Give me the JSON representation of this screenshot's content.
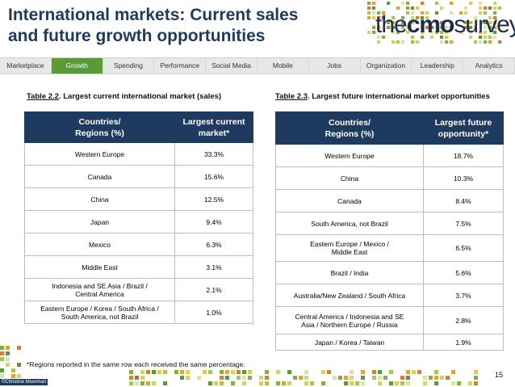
{
  "title": {
    "line1": "International markets: Current sales",
    "line2": "and future growth opportunities"
  },
  "logo": {
    "the": "the",
    "cmo": "cmo",
    "survey": "survey"
  },
  "nav": [
    {
      "label": "Marketplace",
      "active": false
    },
    {
      "label": "Growth",
      "active": true
    },
    {
      "label": "Spending",
      "active": false
    },
    {
      "label": "Performance",
      "active": false
    },
    {
      "label": "Social Media",
      "active": false
    },
    {
      "label": "Mobile",
      "active": false
    },
    {
      "label": "Jobs",
      "active": false
    },
    {
      "label": "Organization",
      "active": false
    },
    {
      "label": "Leadership",
      "active": false
    },
    {
      "label": "Analytics",
      "active": false
    }
  ],
  "colors": {
    "navy": "#1f3a5f",
    "active_tab": "#5a9a38"
  },
  "table1": {
    "caption_num": "Table 2.2",
    "caption_text": ".  Largest current international market (sales)",
    "headers": [
      "Countries/\nRegions (%)",
      "Largest current\nmarket*"
    ],
    "rows": [
      {
        "region": "Western Europe",
        "value": "33.3%"
      },
      {
        "region": "Canada",
        "value": "15.6%"
      },
      {
        "region": "China",
        "value": "12.5%"
      },
      {
        "region": "Japan",
        "value": "9.4%"
      },
      {
        "region": "Mexico",
        "value": "6.3%"
      },
      {
        "region": "Middle East",
        "value": "3.1%"
      },
      {
        "region": "Indonesia and SE Asia / Brazil /\nCentral America",
        "value": "2.1%"
      },
      {
        "region": "Eastern Europe / Korea / South Africa /\nSouth America, not Brazil",
        "value": "1.0%"
      }
    ]
  },
  "table2": {
    "caption_num": "Table 2.3",
    "caption_text": ".  Largest future international market opportunities",
    "headers": [
      "Countries/\nRegions (%)",
      "Largest future\nopportunity*"
    ],
    "rows": [
      {
        "region": "Western Europe",
        "value": "18.7%"
      },
      {
        "region": "China",
        "value": "10.3%"
      },
      {
        "region": "Canada",
        "value": "8.4%"
      },
      {
        "region": "South America, not Brazil",
        "value": "7.5%"
      },
      {
        "region": "Eastern Europe / Mexico /\nMiddle East",
        "value": "6.5%"
      },
      {
        "region": "Brazil / India",
        "value": "5.6%"
      },
      {
        "region": "Australia/New Zealand / South Africa",
        "value": "3.7%"
      },
      {
        "region": "Central America / Indonesia and SE\nAsia / Northern Europe / Russia",
        "value": "2.8%"
      },
      {
        "region": "Japan / Korea / Taiwan",
        "value": "1.9%"
      }
    ]
  },
  "footnote": "*Regions reported in the same row each received the same percentage.",
  "page_number": "15",
  "copyright": "©Christine Moorman"
}
